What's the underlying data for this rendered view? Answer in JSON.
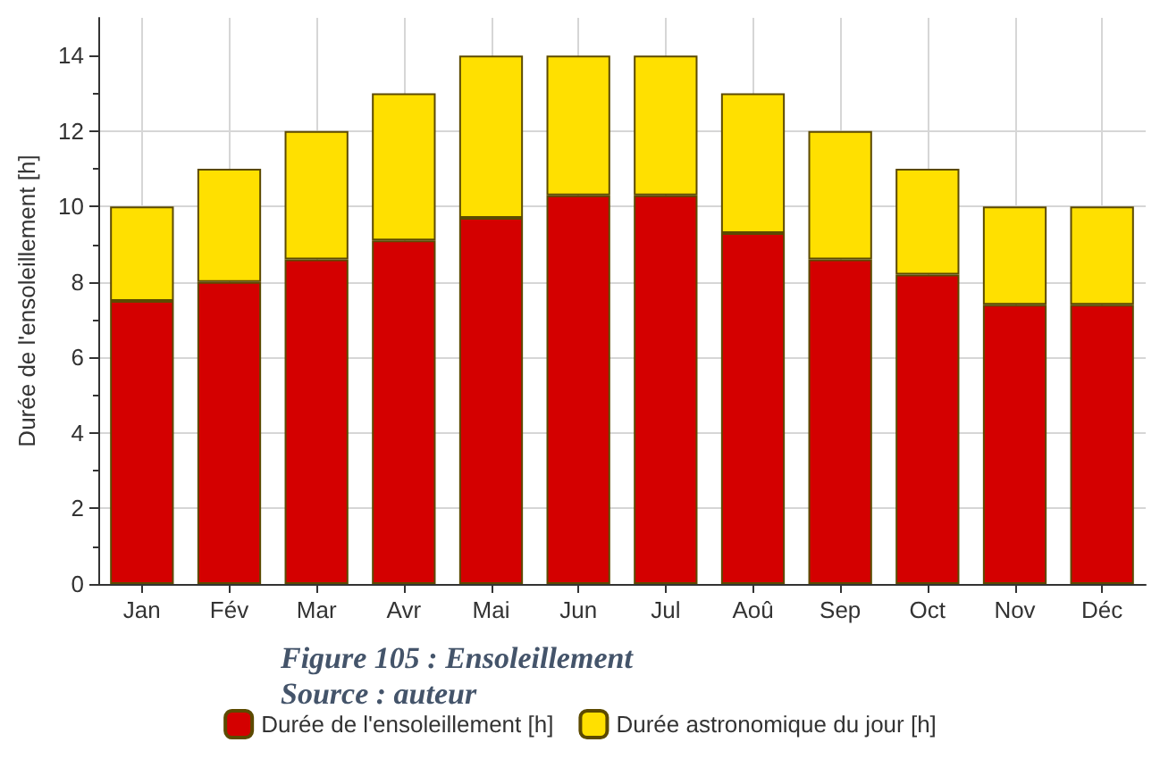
{
  "chart_data": {
    "type": "bar",
    "ylabel": "Durée de l'ensoleillement [h]",
    "categories": [
      "Jan",
      "Fév",
      "Mar",
      "Avr",
      "Mai",
      "Jun",
      "Jul",
      "Aoû",
      "Sep",
      "Oct",
      "Nov",
      "Déc"
    ],
    "series": [
      {
        "name": "Durée de l'ensoleillement [h]",
        "color": "#d40000",
        "values": [
          7.5,
          8.0,
          8.6,
          9.1,
          9.7,
          10.3,
          10.3,
          9.3,
          8.6,
          8.2,
          7.4,
          7.4
        ]
      },
      {
        "name": "Durée astronomique du jour [h]",
        "color": "#ffe000",
        "values": [
          2.5,
          3.0,
          3.4,
          3.9,
          4.3,
          3.7,
          3.7,
          3.7,
          3.4,
          2.8,
          2.6,
          2.6
        ]
      }
    ],
    "stacked": true,
    "ylim": [
      0,
      15
    ],
    "yticks": [
      0,
      2,
      4,
      6,
      8,
      10,
      12,
      14
    ],
    "grid": true,
    "legend": "bottom",
    "annotations": [
      "Figure 105 : Ensoleillement",
      "Source : auteur"
    ]
  }
}
